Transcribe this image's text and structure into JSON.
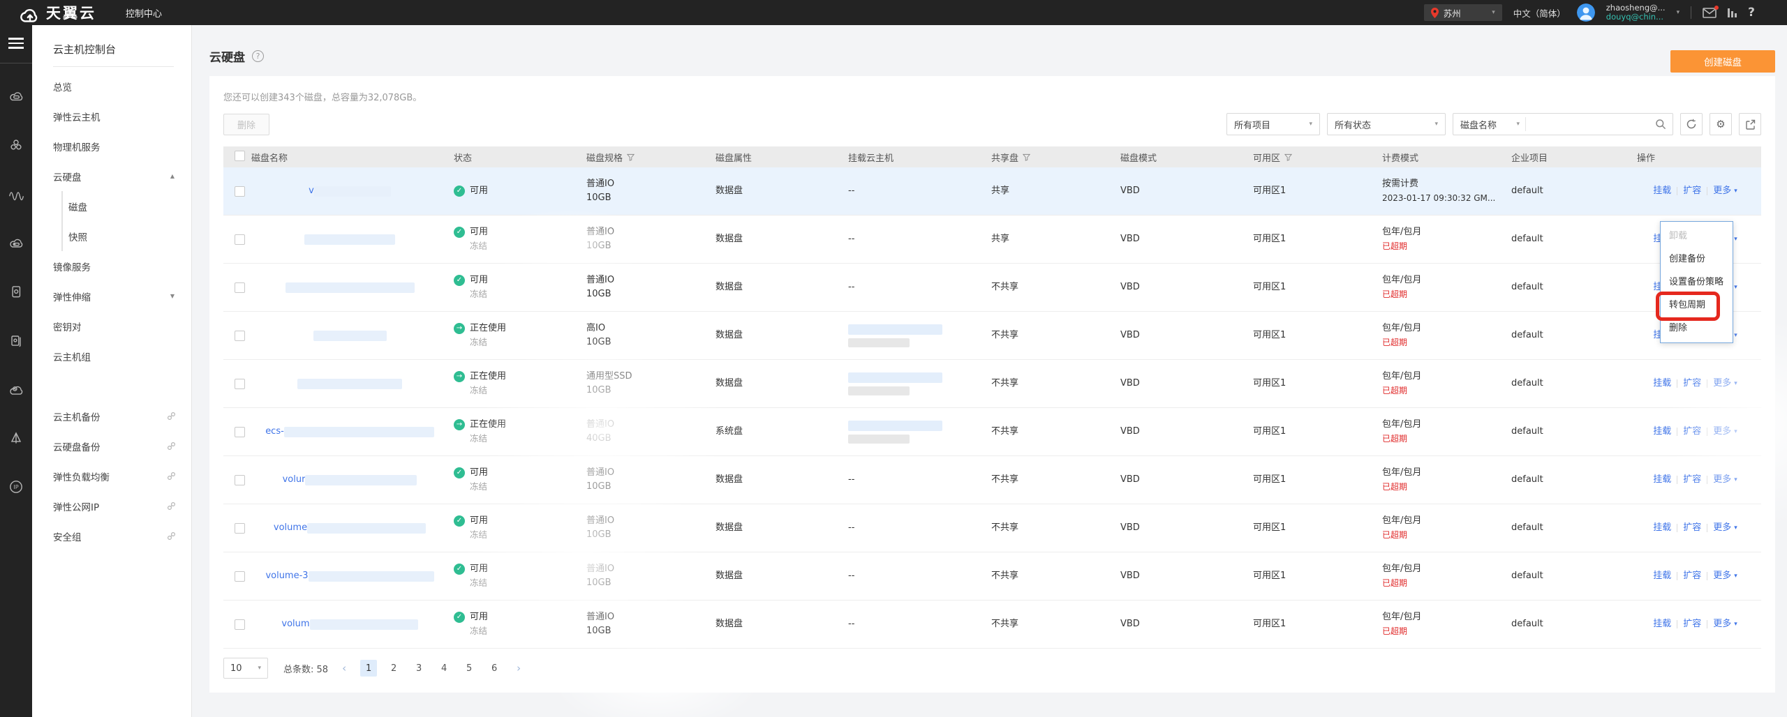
{
  "icons": {
    "caret_small": "▾",
    "prev": "‹",
    "next": "›",
    "gear": "⚙",
    "help": "?"
  },
  "colors": {
    "accent_orange": "#fb9435",
    "link_blue": "#3f74e8",
    "status_green": "#2fbd92",
    "expired_red": "#e02a2a",
    "sidebar_active_blue": "#3570f4",
    "user_teal": "#35c0b1",
    "annotation_red": "#e5281e"
  },
  "topbar": {
    "brand": "天翼云",
    "console_label": "控制中心",
    "region": "苏州",
    "language": "中文（简体）",
    "user_name": "zhaosheng@...",
    "user_account": "douyq@chin..."
  },
  "sidebar": {
    "title": "云主机控制台",
    "items": [
      {
        "label": "总览"
      },
      {
        "label": "弹性云主机"
      },
      {
        "label": "物理机服务"
      },
      {
        "label": "云硬盘",
        "arrow": "▲"
      },
      {
        "label": "磁盘",
        "sub": true,
        "active": true
      },
      {
        "label": "快照",
        "sub": true
      },
      {
        "label": "镜像服务"
      },
      {
        "label": "弹性伸缩",
        "arrow": "▼"
      },
      {
        "label": "密钥对"
      },
      {
        "label": "云主机组"
      },
      {
        "divider": true
      },
      {
        "label": "云主机备份",
        "external": true
      },
      {
        "label": "云硬盘备份",
        "external": true
      },
      {
        "label": "弹性负载均衡",
        "external": true
      },
      {
        "label": "弹性公网IP",
        "external": true
      },
      {
        "label": "安全组",
        "external": true
      }
    ]
  },
  "page": {
    "title": "云硬盘",
    "quota_text": "您还可以创建343个磁盘，总容量为32,078GB。",
    "create_button": "创建磁盘",
    "delete_button": "删除"
  },
  "filters": {
    "project_filter": "所有项目",
    "status_filter": "所有状态",
    "search_field": "磁盘名称",
    "search_value": ""
  },
  "table": {
    "columns": [
      "磁盘名称",
      "状态",
      "磁盘规格",
      "磁盘属性",
      "挂载云主机",
      "共享盘",
      "磁盘模式",
      "可用区",
      "计费模式",
      "企业项目",
      "操作"
    ],
    "actions": [
      "挂载",
      "扩容",
      "更多"
    ],
    "rows": [
      {
        "selected": true,
        "name_prefix": "v",
        "name_blur": 110,
        "status": "可用",
        "status_icon": "✓",
        "spec_type": "普通IO",
        "spec_size": "10GB",
        "attr": "数据盘",
        "host": "--",
        "shared": "共享",
        "mode": "VBD",
        "az": "可用区1",
        "billing": "按需计费",
        "billing_sub": "2023-01-17 09:30:32 GM...",
        "project": "default"
      },
      {
        "name_blur": 130,
        "status": "可用",
        "status_sub": "冻结",
        "status_icon": "✓",
        "spec_type": "普通IO",
        "spec_size": "10GB",
        "attr": "数据盘",
        "host": "--",
        "shared": "共享",
        "mode": "VBD",
        "az": "可用区1",
        "billing": "包年/包月",
        "billing_sub": "已超期",
        "expired": true,
        "project": "default"
      },
      {
        "name_blur": 185,
        "status": "可用",
        "status_sub": "冻结",
        "status_icon": "✓",
        "spec_type": "普通IO",
        "spec_size": "10GB",
        "attr": "数据盘",
        "host": "--",
        "shared": "不共享",
        "mode": "VBD",
        "az": "可用区1",
        "billing": "包年/包月",
        "billing_sub": "已超期",
        "expired": true,
        "project": "default"
      },
      {
        "name_blur": 105,
        "status": "正在使用",
        "status_sub": "冻结",
        "status_icon": "→",
        "spec_type": "高IO",
        "spec_size": "10GB",
        "attr": "数据盘",
        "host_blur1": 135,
        "host_blur2": 88,
        "shared": "不共享",
        "mode": "VBD",
        "az": "可用区1",
        "billing": "包年/包月",
        "billing_sub": "已超期",
        "expired": true,
        "project": "default"
      },
      {
        "name_blur": 150,
        "status": "正在使用",
        "status_sub": "冻结",
        "status_icon": "→",
        "spec_type": "通用型SSD",
        "spec_size": "10GB",
        "attr": "数据盘",
        "host_blur1": 135,
        "host_blur2": 88,
        "shared": "不共享",
        "mode": "VBD",
        "az": "可用区1",
        "billing": "包年/包月",
        "billing_sub": "已超期",
        "expired": true,
        "project": "default"
      },
      {
        "name_prefix": "ecs-",
        "name_blur": 215,
        "status": "正在使用",
        "status_sub": "冻结",
        "status_icon": "→",
        "spec_type": "普通IO",
        "spec_size": "40GB",
        "attr": "系统盘",
        "host_blur1": 135,
        "host_blur2": 88,
        "shared": "不共享",
        "mode": "VBD",
        "az": "可用区1",
        "billing": "包年/包月",
        "billing_sub": "已超期",
        "expired": true,
        "project": "default"
      },
      {
        "name_prefix": "volur",
        "name_blur": 160,
        "status": "可用",
        "status_sub": "冻结",
        "status_icon": "✓",
        "spec_type": "普通IO",
        "spec_size": "10GB",
        "attr": "数据盘",
        "host": "--",
        "shared": "不共享",
        "mode": "VBD",
        "az": "可用区1",
        "billing": "包年/包月",
        "billing_sub": "已超期",
        "expired": true,
        "project": "default"
      },
      {
        "name_prefix": "volume",
        "name_blur": 170,
        "status": "可用",
        "status_sub": "冻结",
        "status_icon": "✓",
        "spec_type": "普通IO",
        "spec_size": "10GB",
        "attr": "数据盘",
        "host": "--",
        "shared": "不共享",
        "mode": "VBD",
        "az": "可用区1",
        "billing": "包年/包月",
        "billing_sub": "已超期",
        "expired": true,
        "project": "default"
      },
      {
        "name_prefix": "volume-3",
        "name_blur": 180,
        "status": "可用",
        "status_sub": "冻结",
        "status_icon": "✓",
        "spec_type": "普通IO",
        "spec_size": "10GB",
        "attr": "数据盘",
        "host": "--",
        "shared": "不共享",
        "mode": "VBD",
        "az": "可用区1",
        "billing": "包年/包月",
        "billing_sub": "已超期",
        "expired": true,
        "project": "default"
      },
      {
        "name_prefix": "volum",
        "name_blur": 155,
        "status": "可用",
        "status_sub": "冻结",
        "status_icon": "✓",
        "spec_type": "普通IO",
        "spec_size": "10GB",
        "attr": "数据盘",
        "host": "--",
        "shared": "不共享",
        "mode": "VBD",
        "az": "可用区1",
        "billing": "包年/包月",
        "billing_sub": "已超期",
        "expired": true,
        "project": "default"
      }
    ]
  },
  "menu": {
    "items": [
      {
        "label": "卸载",
        "disabled": true
      },
      {
        "label": "创建备份"
      },
      {
        "label": "设置备份策略"
      },
      {
        "label": "转包周期",
        "highlighted": true
      },
      {
        "label": "删除"
      }
    ]
  },
  "pagination": {
    "page_size": "10",
    "total_label": "总条数:",
    "total": "58",
    "pages": [
      {
        "n": "1",
        "active": true
      },
      {
        "n": "2"
      },
      {
        "n": "3"
      },
      {
        "n": "4"
      },
      {
        "n": "5"
      },
      {
        "n": "6"
      }
    ]
  }
}
